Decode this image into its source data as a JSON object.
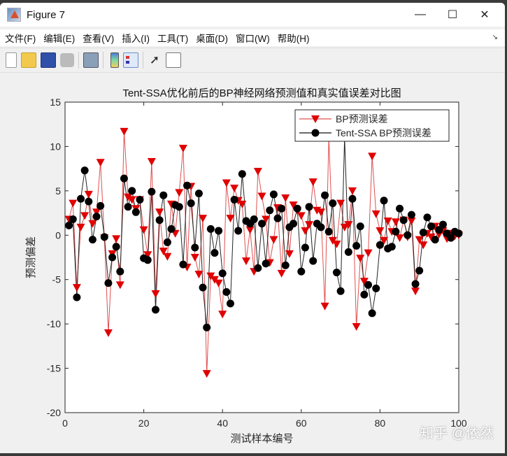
{
  "window": {
    "title": "Figure 7",
    "controls": {
      "minimize": "—",
      "maximize": "☐",
      "close": "✕"
    }
  },
  "menu": [
    "文件(F)",
    "编辑(E)",
    "查看(V)",
    "插入(I)",
    "工具(T)",
    "桌面(D)",
    "窗口(W)",
    "帮助(H)"
  ],
  "toolbar": [
    "new-figure",
    "open-file",
    "save",
    "print",
    "print-preview",
    "colorbar",
    "legend",
    "edit-plot-pointer",
    "property-inspector"
  ],
  "watermark": "知乎 @依然",
  "chart_data": {
    "type": "line",
    "title": "Tent-SSA优化前后的BP神经网络预测值和真实值误差对比图",
    "xlabel": "测试样本编号",
    "ylabel": "预测偏差",
    "xlim": [
      0,
      100
    ],
    "ylim": [
      -20,
      15
    ],
    "xticks": [
      0,
      20,
      40,
      60,
      80,
      100
    ],
    "yticks": [
      15,
      10,
      5,
      0,
      -5,
      -10,
      -15,
      -20
    ],
    "grid": false,
    "legend_position": "northeast",
    "x": [
      1,
      2,
      3,
      4,
      5,
      6,
      7,
      8,
      9,
      10,
      11,
      12,
      13,
      14,
      15,
      16,
      17,
      18,
      19,
      20,
      21,
      22,
      23,
      24,
      25,
      26,
      27,
      28,
      29,
      30,
      31,
      32,
      33,
      34,
      35,
      36,
      37,
      38,
      39,
      40,
      41,
      42,
      43,
      44,
      45,
      46,
      47,
      48,
      49,
      50,
      51,
      52,
      53,
      54,
      55,
      56,
      57,
      58,
      59,
      60,
      61,
      62,
      63,
      64,
      65,
      66,
      67,
      68,
      69,
      70,
      71,
      72,
      73,
      74,
      75,
      76,
      77,
      78,
      79,
      80,
      81,
      82,
      83,
      84,
      85,
      86,
      87,
      88,
      89,
      90,
      91,
      92,
      93,
      94,
      95,
      96,
      97,
      98,
      99,
      100
    ],
    "series": [
      {
        "name": "BP预测误差",
        "color": "#e00000",
        "marker": "triangle-down",
        "values": [
          1.8,
          3.6,
          -5.9,
          0.9,
          2.2,
          4.6,
          1.3,
          2.6,
          8.2,
          -0.3,
          -11.0,
          -2.1,
          -0.4,
          -5.6,
          11.7,
          4.3,
          4.0,
          3.0,
          4.0,
          0.6,
          -2.2,
          8.3,
          -6.6,
          2.6,
          -1.8,
          -2.4,
          3.5,
          0.2,
          4.8,
          9.8,
          -3.6,
          5.5,
          -2.5,
          -4.4,
          1.9,
          -15.6,
          -4.6,
          -5.0,
          -5.4,
          -8.9,
          5.9,
          1.9,
          5.3,
          3.9,
          3.5,
          -2.9,
          0.6,
          -4.1,
          7.2,
          4.4,
          1.8,
          -3.1,
          -0.5,
          3.1,
          -4.3,
          4.2,
          -2.1,
          3.4,
          2.8,
          2.2,
          0.5,
          1.2,
          6.0,
          2.8,
          2.6,
          -8.0,
          11.0,
          -0.6,
          -1.0,
          3.6,
          0.9,
          1.2,
          5.0,
          -10.3,
          -2.6,
          -5.2,
          -2.0,
          8.9,
          2.4,
          0.5,
          -0.6,
          1.6,
          0.4,
          1.5,
          -0.3,
          1.7,
          -0.2,
          1.6,
          -6.3,
          -0.5,
          -1.1,
          0.2,
          -0.2,
          1.0,
          0.1,
          0.5,
          -0.4,
          0.2,
          -0.1,
          0.0
        ]
      },
      {
        "name": "Tent-SSA BP预测误差",
        "color": "#000000",
        "marker": "circle",
        "values": [
          1.1,
          1.8,
          -7.0,
          4.1,
          7.3,
          3.8,
          -0.5,
          2.1,
          3.3,
          -0.2,
          -5.4,
          -2.5,
          -1.3,
          -4.1,
          6.4,
          3.2,
          5.0,
          2.6,
          4.0,
          -2.6,
          -2.8,
          4.9,
          -8.4,
          1.7,
          4.5,
          -0.8,
          0.7,
          3.4,
          3.2,
          -3.3,
          5.6,
          3.6,
          -1.4,
          4.7,
          -5.9,
          -10.4,
          0.7,
          -2.0,
          0.5,
          -4.3,
          -6.4,
          -7.7,
          4.0,
          0.5,
          6.9,
          1.6,
          1.3,
          1.8,
          -3.7,
          1.3,
          -3.2,
          2.8,
          4.6,
          1.9,
          3.0,
          -3.4,
          0.9,
          1.3,
          3.0,
          -4.1,
          -1.4,
          3.2,
          -2.9,
          1.3,
          0.9,
          4.5,
          0.4,
          3.6,
          -4.2,
          -6.3,
          11.0,
          -1.9,
          4.1,
          -1.2,
          1.0,
          -6.7,
          -5.6,
          -8.8,
          -6.0,
          -1.1,
          3.9,
          -1.5,
          -1.3,
          0.4,
          3.0,
          1.7,
          0.0,
          2.3,
          -5.5,
          -4.0,
          0.3,
          2.0,
          1.0,
          -0.5,
          0.6,
          1.2,
          0.2,
          -0.3,
          0.4,
          0.2
        ]
      }
    ]
  }
}
